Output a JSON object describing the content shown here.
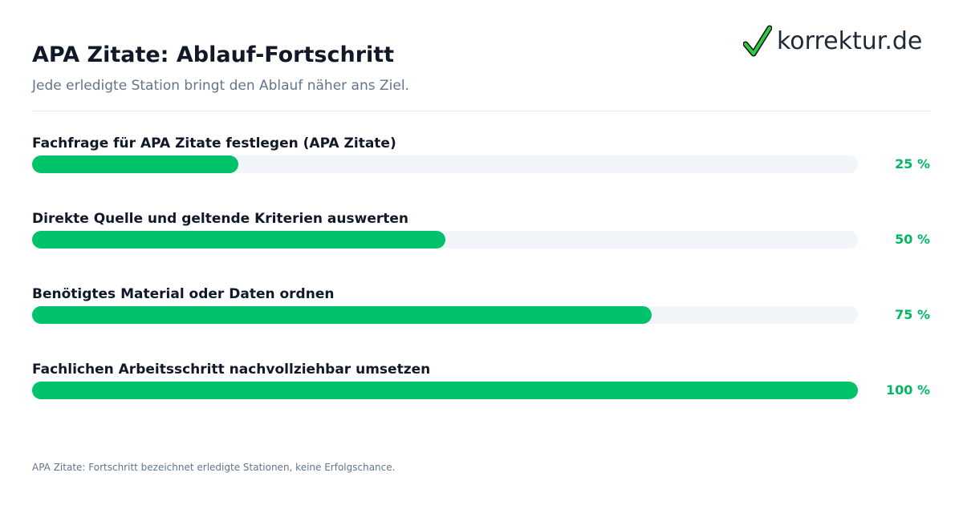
{
  "header": {
    "title": "APA Zitate: Ablauf-Fortschritt",
    "subtitle": "Jede erledigte Station bringt den Ablauf näher ans Ziel."
  },
  "logo": {
    "text": "korrektur.de",
    "icon": "checkmark-icon",
    "check_color": "#2ecc40",
    "check_outline": "#111111"
  },
  "colors": {
    "accent": "#00c26b",
    "track": "#f1f5f9",
    "percent_text": "#00b862"
  },
  "chart_data": {
    "type": "bar",
    "orientation": "horizontal",
    "categories": [
      "Fachfrage für APA Zitate festlegen (APA Zitate)",
      "Direkte Quelle und geltende Kriterien auswerten",
      "Benötigtes Material oder Daten ordnen",
      "Fachlichen Arbeitsschritt nachvollziehbar umsetzen"
    ],
    "values": [
      25,
      50,
      75,
      100
    ],
    "value_labels": [
      "25 %",
      "50 %",
      "75 %",
      "100 %"
    ],
    "xlim": [
      0,
      100
    ],
    "grid": false
  },
  "footer": {
    "note": "APA Zitate: Fortschritt bezeichnet erledigte Stationen, keine Erfolgschance."
  }
}
